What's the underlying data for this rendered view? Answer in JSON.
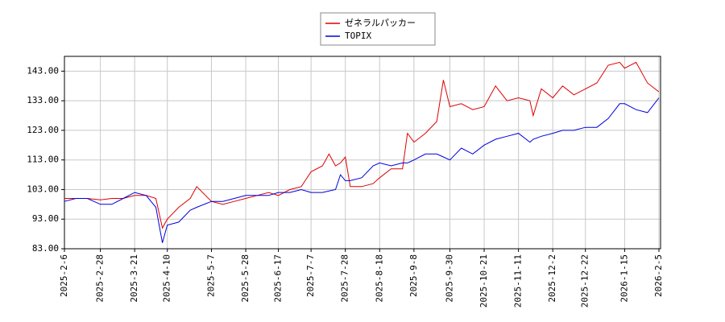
{
  "chart_data": {
    "type": "line",
    "x": [
      "2025-2-6",
      "2025-2-13",
      "2025-2-20",
      "2025-2-28",
      "2025-3-7",
      "2025-3-14",
      "2025-3-21",
      "2025-3-28",
      "2025-4-3",
      "2025-4-7",
      "2025-4-10",
      "2025-4-17",
      "2025-4-24",
      "2025-4-28",
      "2025-5-7",
      "2025-5-14",
      "2025-5-21",
      "2025-5-28",
      "2025-6-4",
      "2025-6-11",
      "2025-6-17",
      "2025-6-24",
      "2025-7-1",
      "2025-7-7",
      "2025-7-14",
      "2025-7-18",
      "2025-7-22",
      "2025-7-25",
      "2025-7-28",
      "2025-7-31",
      "2025-8-7",
      "2025-8-14",
      "2025-8-18",
      "2025-8-25",
      "2025-9-1",
      "2025-9-4",
      "2025-9-8",
      "2025-9-15",
      "2025-9-22",
      "2025-9-26",
      "2025-9-30",
      "2025-10-7",
      "2025-10-14",
      "2025-10-21",
      "2025-10-28",
      "2025-11-4",
      "2025-11-11",
      "2025-11-18",
      "2025-11-20",
      "2025-11-25",
      "2025-12-2",
      "2025-12-8",
      "2025-12-15",
      "2025-12-22",
      "2025-12-29",
      "2026-1-5",
      "2026-1-12",
      "2026-1-15",
      "2026-1-22",
      "2026-1-29",
      "2026-2-5"
    ],
    "series": [
      {
        "name": "ゼネラルパッカー",
        "color": "#dd0000",
        "values": [
          100,
          100,
          100,
          99.5,
          100,
          100,
          101,
          101,
          100,
          90,
          93,
          97,
          100,
          104,
          99,
          98,
          99,
          100,
          101,
          102,
          101,
          103,
          104,
          109,
          111,
          115,
          111,
          112,
          114,
          104,
          104,
          105,
          107,
          110,
          110,
          122,
          119,
          122,
          126,
          140,
          131,
          132,
          130,
          131,
          138,
          133,
          134,
          133,
          128,
          137,
          134,
          138,
          135,
          137,
          139,
          145,
          146,
          144,
          146,
          139,
          136
        ]
      },
      {
        "name": "TOPIX",
        "color": "#0000dd",
        "values": [
          99,
          100,
          100,
          98,
          98,
          100,
          102,
          101,
          97,
          85,
          91,
          92,
          96,
          97,
          99,
          99,
          100,
          101,
          101,
          101,
          102,
          102,
          103,
          102,
          102,
          102.5,
          103,
          108,
          106,
          106,
          107,
          111,
          112,
          111,
          112,
          112,
          113,
          115,
          115,
          114,
          113,
          117,
          115,
          118,
          120,
          121,
          122,
          119,
          120,
          121,
          122,
          123,
          123,
          124,
          124,
          127,
          132,
          132,
          130,
          129,
          134
        ]
      }
    ],
    "xlim": [
      "2025-2-6",
      "2026-2-6"
    ],
    "xticks": [
      "2025-2-6",
      "2025-2-28",
      "2025-3-21",
      "2025-4-10",
      "2025-5-7",
      "2025-5-28",
      "2025-6-17",
      "2025-7-7",
      "2025-7-28",
      "2025-8-18",
      "2025-9-8",
      "2025-9-30",
      "2025-10-21",
      "2025-11-11",
      "2025-12-2",
      "2025-12-22",
      "2026-1-15",
      "2026-2-5"
    ],
    "ylim": [
      83,
      148
    ],
    "yticks": [
      {
        "value": 83,
        "label": "83.00"
      },
      {
        "value": 93,
        "label": "93.00"
      },
      {
        "value": 103,
        "label": "103.00"
      },
      {
        "value": 113,
        "label": "113.00"
      },
      {
        "value": 123,
        "label": "123.00"
      },
      {
        "value": 133,
        "label": "133.00"
      },
      {
        "value": 143,
        "label": "143.00"
      }
    ],
    "grid": true,
    "legend": "top"
  }
}
